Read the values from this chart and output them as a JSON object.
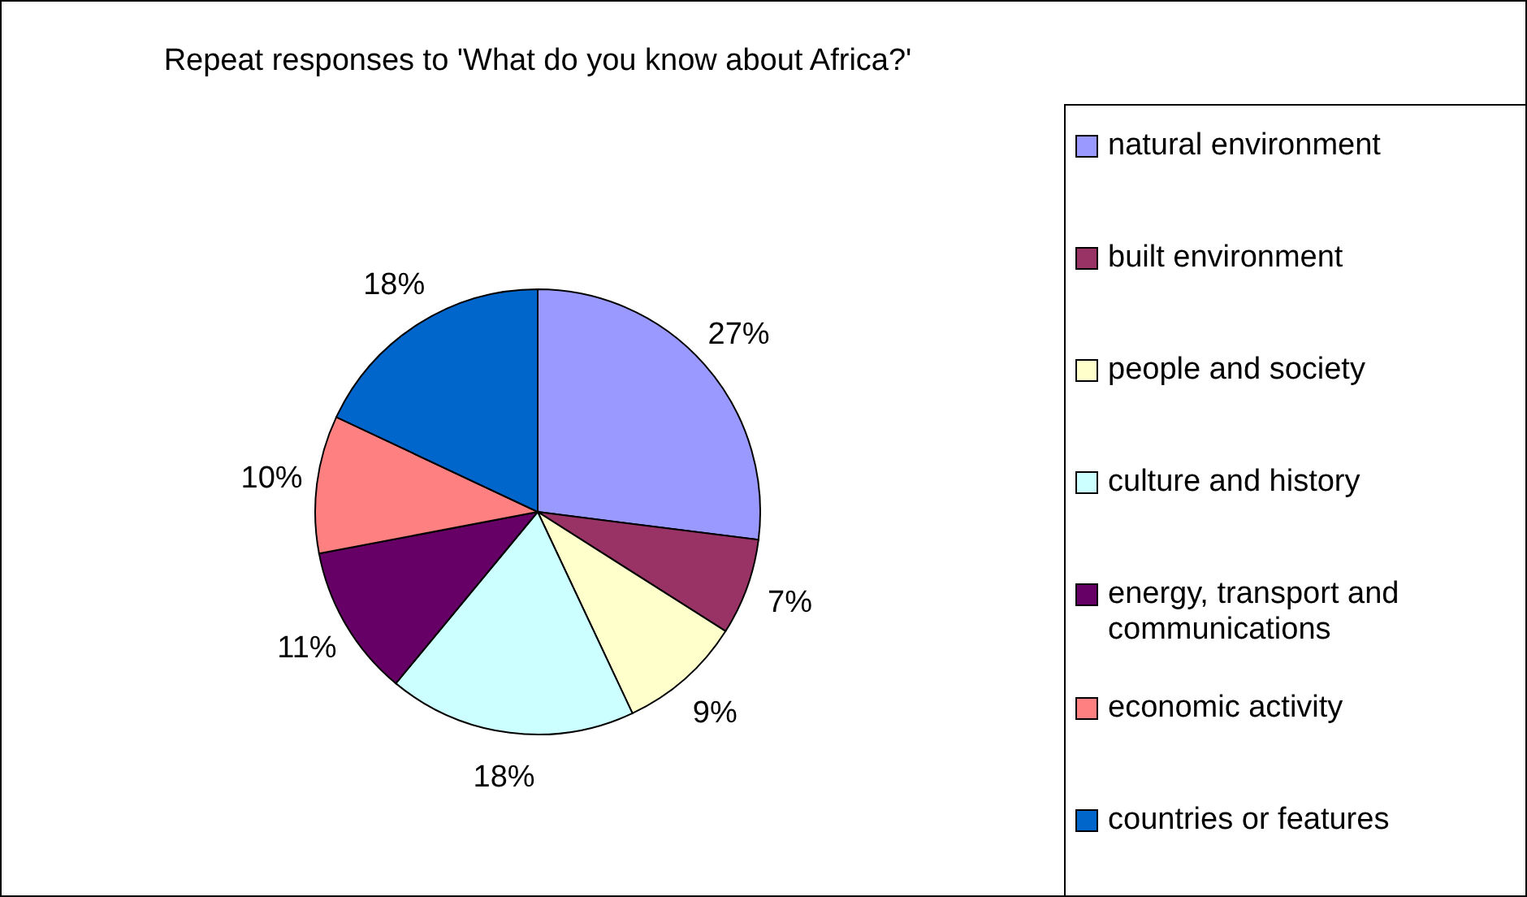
{
  "chart_data": {
    "type": "pie",
    "title": "Repeat responses to 'What do you know about Africa?'",
    "categories": [
      "natural environment",
      "built environment",
      "people and society",
      "culture and history",
      "energy, transport and communications",
      "economic activity",
      "countries or features"
    ],
    "values": [
      27,
      7,
      9,
      18,
      11,
      10,
      18
    ],
    "colors": [
      "#9999ff",
      "#993366",
      "#ffffcc",
      "#ccffff",
      "#660066",
      "#ff8080",
      "#0066cc"
    ],
    "value_labels": [
      "27%",
      "7%",
      "9%",
      "18%",
      "11%",
      "10%",
      "18%"
    ],
    "legend": "right"
  }
}
